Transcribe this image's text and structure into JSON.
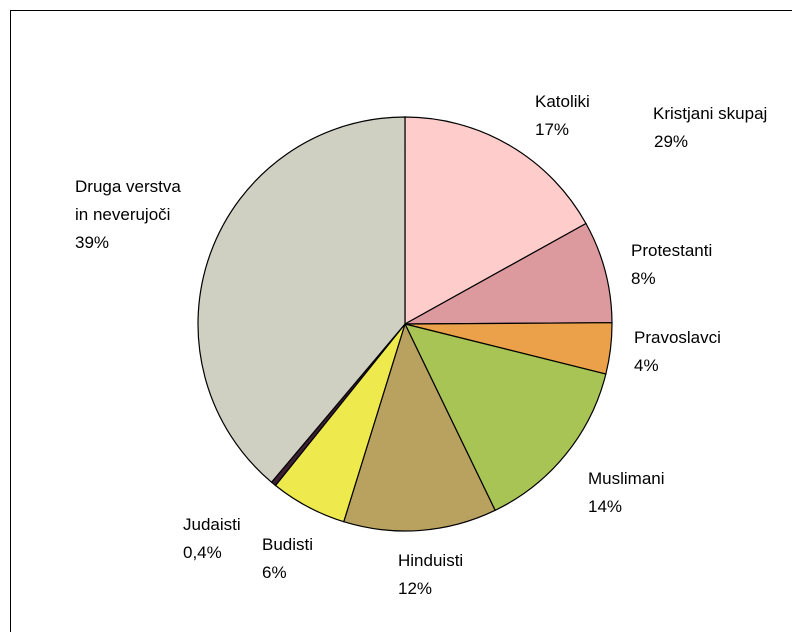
{
  "chart_data": {
    "type": "pie",
    "title": "",
    "slices": [
      {
        "label": "Katoliki",
        "value": 17,
        "value_label": "17%",
        "color": "#FFCCCC"
      },
      {
        "label": "Protestanti",
        "value": 8,
        "value_label": "8%",
        "color": "#DC9A9F"
      },
      {
        "label": "Pravoslavci",
        "value": 4,
        "value_label": "4%",
        "color": "#EBA14A"
      },
      {
        "label": "Muslimani",
        "value": 14,
        "value_label": "14%",
        "color": "#A8C454"
      },
      {
        "label": "Hinduisti",
        "value": 12,
        "value_label": "12%",
        "color": "#B9A15F"
      },
      {
        "label": "Budisti",
        "value": 6,
        "value_label": "6%",
        "color": "#EEEA4E"
      },
      {
        "label": "Judaisti",
        "value": 0.4,
        "value_label": "0,4%",
        "color": "#3C1F33"
      },
      {
        "label": "Druga verstva in neverujoči",
        "value": 39,
        "value_label": "39%",
        "color": "#CFCFC2"
      }
    ],
    "group_annotation": {
      "label": "Kristjani skupaj",
      "value_label": "29%"
    },
    "legend": "none"
  }
}
